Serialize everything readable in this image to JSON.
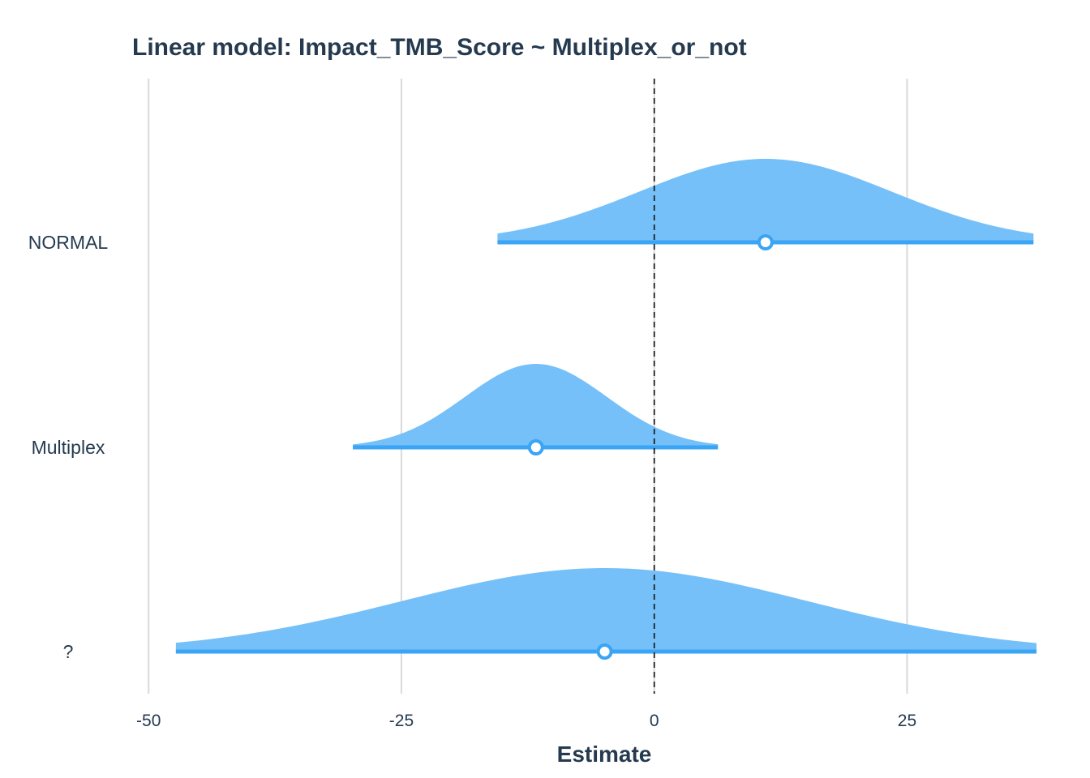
{
  "chart_data": {
    "type": "area",
    "title": "Linear model: Impact_TMB_Score ~ Multiplex_or_not",
    "xlabel": "Estimate",
    "ylabel": "",
    "xlim": [
      -50,
      38
    ],
    "x_ticks": [
      "-50",
      "-25",
      "0",
      "25"
    ],
    "x_tick_values": [
      -50,
      -25,
      0,
      25
    ],
    "reference_line": 0,
    "grid": true,
    "colors": {
      "fill": "#76c0f9",
      "line": "#3aa4f5",
      "point_fill": "#ffffff",
      "text": "#253a4f",
      "grid": "#dcdcdc"
    },
    "series": [
      {
        "category": "NORMAL",
        "estimate": 11,
        "ci_low": -15.5,
        "ci_high": 37.5,
        "sd": 12.5
      },
      {
        "category": "Multiplex",
        "estimate": -11.7,
        "ci_low": -29.8,
        "ci_high": 6.3,
        "sd": 7.0
      },
      {
        "category": "?",
        "estimate": -4.9,
        "ci_low": -47.3,
        "ci_high": 37.8,
        "sd": 20.0
      }
    ]
  }
}
